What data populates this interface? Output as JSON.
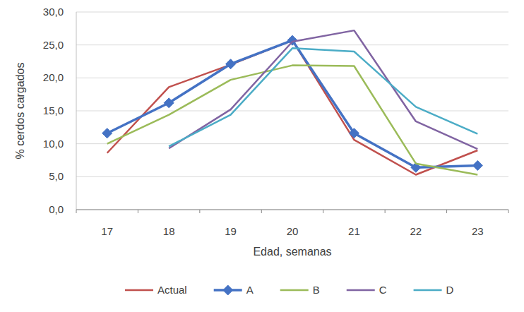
{
  "chart_data": {
    "type": "line",
    "x_label": "Edad, semanas",
    "y_label": "% cerdos cargados",
    "categories": [
      "17",
      "18",
      "19",
      "20",
      "21",
      "22",
      "23"
    ],
    "series": [
      {
        "name": "Actual",
        "color": "#c0504d",
        "marker": "none",
        "line_style": "solid",
        "values": [
          8.6,
          18.6,
          22.0,
          25.7,
          10.6,
          5.3,
          9.0
        ]
      },
      {
        "name": "A",
        "color": "#4472c4",
        "marker": "diamond",
        "line_style": "solid",
        "values": [
          11.6,
          16.2,
          22.1,
          25.7,
          11.6,
          6.4,
          6.7
        ]
      },
      {
        "name": "B",
        "color": "#9bbb59",
        "marker": "none",
        "line_style": "solid",
        "values": [
          10.0,
          14.4,
          19.7,
          21.9,
          21.8,
          7.0,
          5.3
        ]
      },
      {
        "name": "C",
        "color": "#8064a2",
        "marker": "none",
        "line_style": "solid",
        "values": [
          null,
          9.3,
          15.2,
          25.5,
          27.2,
          13.4,
          9.2
        ]
      },
      {
        "name": "D",
        "color": "#4bacc6",
        "marker": "none",
        "line_style": "solid",
        "values": [
          null,
          9.6,
          14.4,
          24.5,
          24.0,
          15.6,
          11.5
        ]
      }
    ],
    "ylim": [
      0,
      30
    ],
    "yticks": [
      {
        "value": 0,
        "label": "0,0"
      },
      {
        "value": 5,
        "label": "5,0"
      },
      {
        "value": 10,
        "label": "10,0"
      },
      {
        "value": 15,
        "label": "15,0"
      },
      {
        "value": 20,
        "label": "20,0"
      },
      {
        "value": 25,
        "label": "25,0"
      },
      {
        "value": 30,
        "label": "30,0"
      }
    ],
    "grid": true,
    "legend": "bottom"
  }
}
